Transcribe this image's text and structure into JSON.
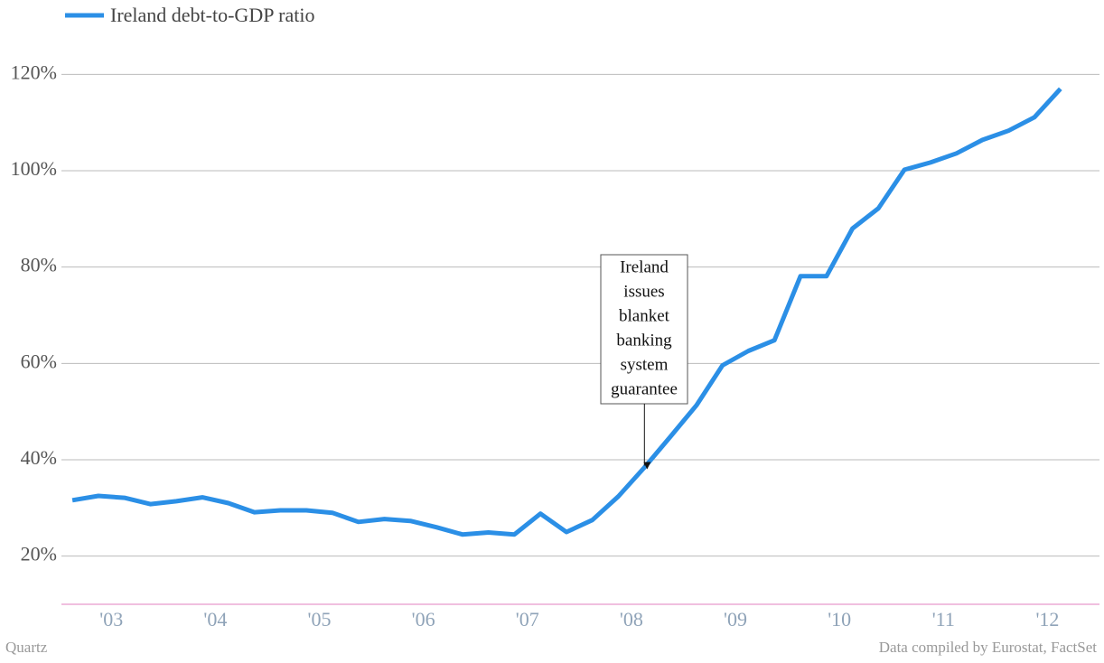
{
  "chart_data": {
    "type": "line",
    "series": [
      {
        "name": "Ireland debt-to-GDP ratio",
        "color": "#2b8fe6",
        "values": [
          31.6,
          32.5,
          32.1,
          30.8,
          31.4,
          32.2,
          31.0,
          29.1,
          29.5,
          29.5,
          29.0,
          27.1,
          27.7,
          27.3,
          26.0,
          24.5,
          24.9,
          24.5,
          28.8,
          25.0,
          27.5,
          32.4,
          38.4,
          44.8,
          51.3,
          59.6,
          62.6,
          64.8,
          78.1,
          78.1,
          88.0,
          92.2,
          100.2,
          101.7,
          103.6,
          106.4,
          108.3,
          111.1,
          117.0
        ]
      }
    ],
    "x": [
      2002.625,
      2002.875,
      2003.125,
      2003.375,
      2003.625,
      2003.875,
      2004.125,
      2004.375,
      2004.625,
      2004.875,
      2005.125,
      2005.375,
      2005.625,
      2005.875,
      2006.125,
      2006.375,
      2006.625,
      2006.875,
      2007.125,
      2007.375,
      2007.625,
      2007.875,
      2008.125,
      2008.375,
      2008.625,
      2008.875,
      2009.125,
      2009.375,
      2009.625,
      2009.875,
      2010.125,
      2010.375,
      2010.625,
      2010.875,
      2011.125,
      2011.375,
      2011.625,
      2011.875,
      2012.125
    ],
    "xlim": [
      2002.52,
      2012.5
    ],
    "xticks": [
      {
        "value": 2003,
        "label": "'03"
      },
      {
        "value": 2004,
        "label": "'04"
      },
      {
        "value": 2005,
        "label": "'05"
      },
      {
        "value": 2006,
        "label": "'06"
      },
      {
        "value": 2007,
        "label": "'07"
      },
      {
        "value": 2008,
        "label": "'08"
      },
      {
        "value": 2009,
        "label": "'09"
      },
      {
        "value": 2010,
        "label": "'10"
      },
      {
        "value": 2011,
        "label": "'11"
      },
      {
        "value": 2012,
        "label": "'12"
      }
    ],
    "ylim": [
      10,
      130
    ],
    "yticks": [
      {
        "value": 20,
        "label": "20%"
      },
      {
        "value": 40,
        "label": "40%"
      },
      {
        "value": 60,
        "label": "60%"
      },
      {
        "value": 80,
        "label": "80%"
      },
      {
        "value": 100,
        "label": "100%"
      },
      {
        "value": 120,
        "label": "120%"
      }
    ],
    "grid": true,
    "annotation": {
      "lines": [
        "Ireland",
        "issues",
        "blanket",
        "banking",
        "system",
        "guarantee"
      ],
      "x": 2008.125,
      "y": 38.4
    },
    "source_left": "Quartz",
    "source_right": "Data compiled by Eurostat, FactSet"
  }
}
